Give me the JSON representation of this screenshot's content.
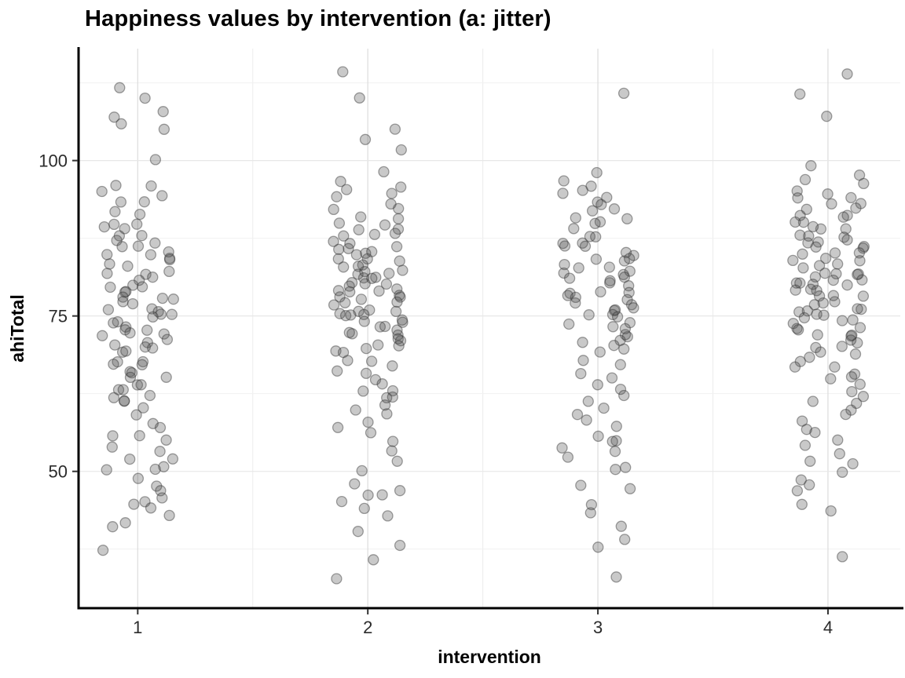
{
  "title": "Happiness values by intervention (a: jitter)",
  "chart_data": {
    "type": "scatter",
    "subtype": "jitter",
    "title": "Happiness values by intervention (a: jitter)",
    "xlabel": "intervention",
    "ylabel": "ahiTotal",
    "categories": [
      "1",
      "2",
      "3",
      "4"
    ],
    "y_ticks": [
      50,
      75,
      100
    ],
    "ylim": [
      28,
      118
    ],
    "grid": true,
    "legend": "none",
    "point_color": "#4d4d4d",
    "point_alpha": 0.3,
    "axis_color": "#000000",
    "gridline_color": "#dcdcdc",
    "series": [
      {
        "name": "1",
        "values": [
          110,
          108,
          107,
          106,
          105,
          112,
          100,
          96,
          96,
          95,
          94,
          93,
          93,
          92,
          91,
          90,
          90,
          89,
          89,
          88,
          88,
          87,
          87,
          86,
          86,
          85,
          85,
          85,
          84,
          84,
          83,
          83,
          82,
          82,
          82,
          81,
          81,
          80,
          80,
          80,
          79,
          79,
          78,
          78,
          78,
          77,
          77,
          76,
          76,
          76,
          75,
          75,
          75,
          74,
          74,
          73,
          73,
          73,
          72,
          72,
          72,
          71,
          71,
          70,
          70,
          70,
          69,
          69,
          68,
          68,
          67,
          67,
          66,
          66,
          65,
          65,
          64,
          64,
          63,
          63,
          62,
          62,
          61,
          61,
          60,
          59,
          58,
          57,
          56,
          56,
          55,
          54,
          53,
          52,
          52,
          51,
          50,
          50,
          49,
          48,
          47,
          46,
          45,
          45,
          44,
          43,
          42,
          41,
          37
        ]
      },
      {
        "name": "2",
        "values": [
          114,
          110,
          105,
          103,
          102,
          98,
          97,
          96,
          95,
          95,
          94,
          93,
          92,
          92,
          91,
          91,
          90,
          90,
          89,
          89,
          88,
          88,
          88,
          87,
          87,
          86,
          86,
          86,
          85,
          85,
          85,
          84,
          84,
          84,
          83,
          83,
          83,
          82,
          82,
          82,
          82,
          81,
          81,
          81,
          80,
          80,
          80,
          80,
          79,
          79,
          79,
          79,
          78,
          78,
          78,
          78,
          77,
          77,
          77,
          76,
          76,
          76,
          75,
          75,
          75,
          75,
          74,
          74,
          74,
          73,
          73,
          73,
          72,
          72,
          72,
          71,
          71,
          70,
          70,
          70,
          69,
          69,
          68,
          68,
          67,
          66,
          66,
          65,
          64,
          63,
          63,
          62,
          62,
          61,
          60,
          59,
          58,
          57,
          56,
          55,
          53,
          52,
          50,
          48,
          47,
          46,
          46,
          45,
          44,
          43,
          40,
          38,
          36,
          33
        ]
      },
      {
        "name": "3",
        "values": [
          111,
          98,
          97,
          96,
          95,
          95,
          94,
          93,
          93,
          92,
          92,
          91,
          91,
          90,
          90,
          89,
          88,
          88,
          87,
          87,
          86,
          86,
          85,
          85,
          84,
          84,
          84,
          83,
          83,
          83,
          82,
          82,
          82,
          81,
          81,
          81,
          80,
          80,
          79,
          79,
          79,
          78,
          78,
          78,
          77,
          77,
          76,
          76,
          76,
          75,
          75,
          75,
          74,
          74,
          73,
          73,
          72,
          72,
          71,
          71,
          70,
          70,
          69,
          68,
          67,
          66,
          65,
          64,
          63,
          62,
          61,
          60,
          59,
          58,
          57,
          56,
          55,
          55,
          54,
          53,
          52,
          51,
          50,
          48,
          47,
          45,
          43,
          41,
          39,
          38,
          33
        ]
      },
      {
        "name": "4",
        "values": [
          114,
          111,
          107,
          99,
          98,
          97,
          96,
          95,
          95,
          94,
          94,
          93,
          93,
          92,
          92,
          91,
          91,
          91,
          90,
          90,
          89,
          89,
          89,
          88,
          88,
          88,
          87,
          87,
          87,
          86,
          86,
          86,
          85,
          85,
          85,
          84,
          84,
          84,
          83,
          83,
          83,
          82,
          82,
          82,
          82,
          81,
          81,
          81,
          80,
          80,
          80,
          80,
          79,
          79,
          79,
          78,
          78,
          78,
          77,
          77,
          77,
          76,
          76,
          76,
          76,
          75,
          75,
          75,
          74,
          74,
          74,
          73,
          73,
          73,
          72,
          72,
          72,
          71,
          71,
          70,
          70,
          69,
          69,
          68,
          68,
          67,
          67,
          66,
          65,
          65,
          64,
          63,
          62,
          61,
          61,
          60,
          59,
          58,
          57,
          56,
          55,
          54,
          53,
          52,
          51,
          50,
          49,
          48,
          47,
          45,
          44,
          36
        ]
      }
    ]
  }
}
